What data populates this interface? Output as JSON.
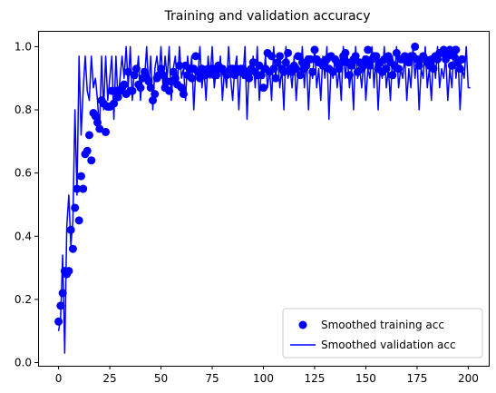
{
  "chart_data": {
    "type": "line",
    "title": "Training and validation accuracy",
    "xlabel": "",
    "ylabel": "",
    "xlim": [
      -10,
      210
    ],
    "ylim": [
      -0.01,
      1.05
    ],
    "x_ticks": [
      0,
      25,
      50,
      75,
      100,
      125,
      150,
      175,
      200
    ],
    "y_ticks": [
      0.0,
      0.2,
      0.4,
      0.6,
      0.8,
      1.0
    ],
    "x_tick_labels": [
      "0",
      "25",
      "50",
      "75",
      "100",
      "125",
      "150",
      "175",
      "200"
    ],
    "y_tick_labels": [
      "0.0",
      "0.2",
      "0.4",
      "0.6",
      "0.8",
      "1.0"
    ],
    "grid": false,
    "legend_position": "lower-right",
    "colors": {
      "series": "#0000ff",
      "axes": "#000000",
      "legend_border": "#cccccc"
    },
    "series": [
      {
        "name": "Smoothed training acc",
        "style": "markers",
        "values": [
          0.13,
          0.18,
          0.22,
          0.29,
          0.28,
          0.29,
          0.42,
          0.36,
          0.49,
          0.55,
          0.45,
          0.59,
          0.55,
          0.66,
          0.67,
          0.72,
          0.64,
          0.79,
          0.78,
          0.76,
          0.74,
          0.83,
          0.82,
          0.73,
          0.81,
          0.81,
          0.86,
          0.82,
          0.86,
          0.84,
          0.86,
          0.87,
          0.88,
          0.85,
          0.92,
          0.86,
          0.86,
          0.91,
          0.93,
          0.88,
          0.87,
          0.9,
          0.92,
          0.9,
          0.89,
          0.87,
          0.83,
          0.85,
          0.9,
          0.91,
          0.93,
          0.91,
          0.87,
          0.89,
          0.86,
          0.89,
          0.92,
          0.9,
          0.88,
          0.94,
          0.87,
          0.85,
          0.94,
          0.91,
          0.93,
          0.9,
          0.93,
          0.97,
          0.92,
          0.9,
          0.93,
          0.92,
          0.91,
          0.93,
          0.92,
          0.93,
          0.91,
          0.91,
          0.94,
          0.93,
          0.93,
          0.92,
          0.91,
          0.92,
          0.93,
          0.93,
          0.91,
          0.93,
          0.92,
          0.93,
          0.93,
          0.91,
          0.92,
          0.9,
          0.93,
          0.95,
          0.92,
          0.91,
          0.94,
          0.91,
          0.87,
          0.93,
          0.98,
          0.92,
          0.97,
          0.93,
          0.9,
          0.95,
          0.97,
          0.93,
          0.92,
          0.95,
          0.98,
          0.93,
          0.92,
          0.94,
          0.93,
          0.97,
          0.91,
          0.95,
          0.93,
          0.94,
          0.96,
          0.96,
          0.92,
          0.99,
          0.96,
          0.95,
          0.95,
          0.94,
          0.95,
          0.96,
          0.93,
          0.97,
          0.92,
          0.96,
          0.95,
          0.93,
          0.95,
          0.97,
          0.98,
          0.95,
          0.91,
          0.94,
          0.96,
          0.97,
          0.92,
          0.95,
          0.93,
          0.94,
          0.96,
          0.99,
          0.94,
          0.96,
          0.97,
          0.97,
          0.93,
          0.95,
          0.92,
          0.96,
          0.93,
          0.97,
          0.95,
          0.91,
          0.94,
          0.98,
          0.93,
          0.96,
          0.96,
          0.97,
          0.96,
          0.95,
          0.97,
          0.97,
          1.0,
          0.96,
          0.94,
          0.96,
          0.97,
          0.96,
          0.95,
          0.94,
          0.96,
          0.93,
          0.97,
          0.96,
          0.98,
          0.98,
          0.99,
          0.96,
          0.97,
          0.99,
          0.94,
          0.97,
          0.99,
          0.95,
          0.93,
          0.96
        ]
      },
      {
        "name": "Smoothed validation acc",
        "style": "line",
        "values": [
          0.1,
          0.14,
          0.34,
          0.03,
          0.43,
          0.53,
          0.37,
          0.45,
          0.8,
          0.53,
          0.97,
          0.72,
          0.86,
          0.97,
          0.86,
          0.83,
          0.97,
          0.87,
          0.9,
          0.83,
          0.73,
          0.97,
          0.8,
          0.97,
          0.83,
          0.9,
          0.97,
          0.77,
          0.97,
          0.83,
          0.9,
          0.97,
          0.9,
          1.0,
          0.87,
          1.0,
          0.83,
          0.93,
          0.9,
          0.97,
          0.83,
          0.93,
          0.9,
          1.0,
          0.87,
          0.97,
          0.8,
          0.93,
          0.97,
          0.9,
          1.0,
          0.87,
          0.97,
          0.9,
          1.0,
          0.83,
          0.93,
          0.97,
          0.87,
          1.0,
          0.9,
          0.93,
          0.83,
          0.97,
          0.9,
          0.97,
          0.8,
          0.93,
          0.9,
          1.0,
          0.87,
          0.93,
          0.83,
          0.97,
          0.9,
          1.0,
          0.87,
          0.93,
          0.9,
          0.97,
          0.83,
          0.93,
          0.87,
          1.0,
          0.9,
          0.83,
          0.93,
          0.97,
          0.8,
          0.93,
          0.9,
          1.0,
          0.77,
          0.93,
          0.9,
          0.97,
          0.87,
          1.0,
          0.83,
          0.93,
          0.9,
          0.97,
          0.87,
          0.93,
          0.83,
          1.0,
          0.9,
          0.97,
          0.87,
          0.93,
          0.8,
          1.0,
          0.9,
          0.93,
          0.87,
          0.97,
          0.83,
          0.93,
          0.9,
          1.0,
          0.87,
          0.97,
          0.8,
          0.93,
          0.9,
          1.0,
          0.87,
          0.93,
          0.83,
          0.97,
          0.9,
          1.0,
          0.77,
          0.93,
          0.9,
          0.97,
          0.87,
          0.93,
          0.83,
          1.0,
          0.9,
          0.97,
          0.87,
          0.93,
          0.8,
          1.0,
          0.9,
          0.93,
          0.87,
          0.97,
          0.83,
          0.93,
          0.9,
          1.0,
          0.87,
          0.97,
          0.8,
          0.93,
          0.9,
          1.0,
          0.87,
          0.93,
          0.83,
          0.97,
          0.9,
          1.0,
          0.87,
          0.93,
          0.9,
          0.97,
          0.83,
          0.93,
          0.87,
          1.0,
          0.9,
          0.97,
          0.8,
          0.93,
          0.9,
          1.0,
          0.87,
          0.93,
          0.83,
          0.97,
          0.9,
          1.0,
          0.87,
          0.93,
          0.9,
          0.97,
          0.83,
          0.93,
          0.87,
          1.0,
          0.9,
          0.97,
          0.8,
          0.93,
          0.9,
          1.0,
          0.87,
          0.87
        ]
      }
    ]
  }
}
